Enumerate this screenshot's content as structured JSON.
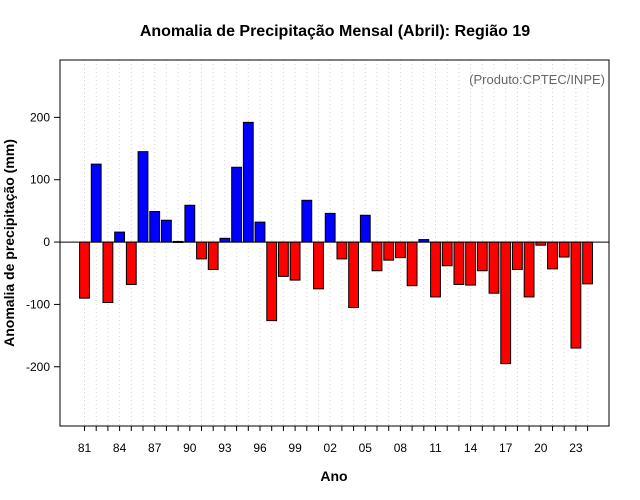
{
  "chart_data": {
    "type": "bar",
    "title": "Anomalia de Precipitação Mensal (Abril): Região 19",
    "xlabel": "Ano",
    "ylabel": "Anomalia de precipitação (mm)",
    "credit": "(Produto:CPTEC/INPE)",
    "ylim": [
      -295,
      292
    ],
    "yticks": [
      -200,
      -100,
      0,
      100,
      200
    ],
    "x_tick_labels": [
      "81",
      "84",
      "87",
      "90",
      "93",
      "96",
      "99",
      "02",
      "05",
      "08",
      "11",
      "14",
      "17",
      "20",
      "23"
    ],
    "x_tick_every": 3,
    "grid": "vertical dotted",
    "positive_color": "#0000ff",
    "negative_color": "#ff0000",
    "categories": [
      "1981",
      "1982",
      "1983",
      "1984",
      "1985",
      "1986",
      "1987",
      "1988",
      "1989",
      "1990",
      "1991",
      "1992",
      "1993",
      "1994",
      "1995",
      "1996",
      "1997",
      "1998",
      "1999",
      "2000",
      "2001",
      "2002",
      "2003",
      "2004",
      "2005",
      "2006",
      "2007",
      "2008",
      "2009",
      "2010",
      "2011",
      "2012",
      "2013",
      "2014",
      "2015",
      "2016",
      "2017",
      "2018",
      "2019",
      "2020",
      "2021",
      "2022",
      "2023",
      "2024"
    ],
    "values": [
      -90,
      125,
      -97,
      16,
      -68,
      145,
      49,
      35,
      1,
      59,
      -27,
      -44,
      6,
      120,
      192,
      32,
      -126,
      -55,
      -61,
      67,
      -75,
      46,
      -27,
      -105,
      43,
      -46,
      -29,
      -25,
      -70,
      4,
      -88,
      -38,
      -68,
      -69,
      -46,
      -82,
      -195,
      -44,
      -88,
      -5,
      -43,
      -24,
      -170,
      -67
    ]
  }
}
